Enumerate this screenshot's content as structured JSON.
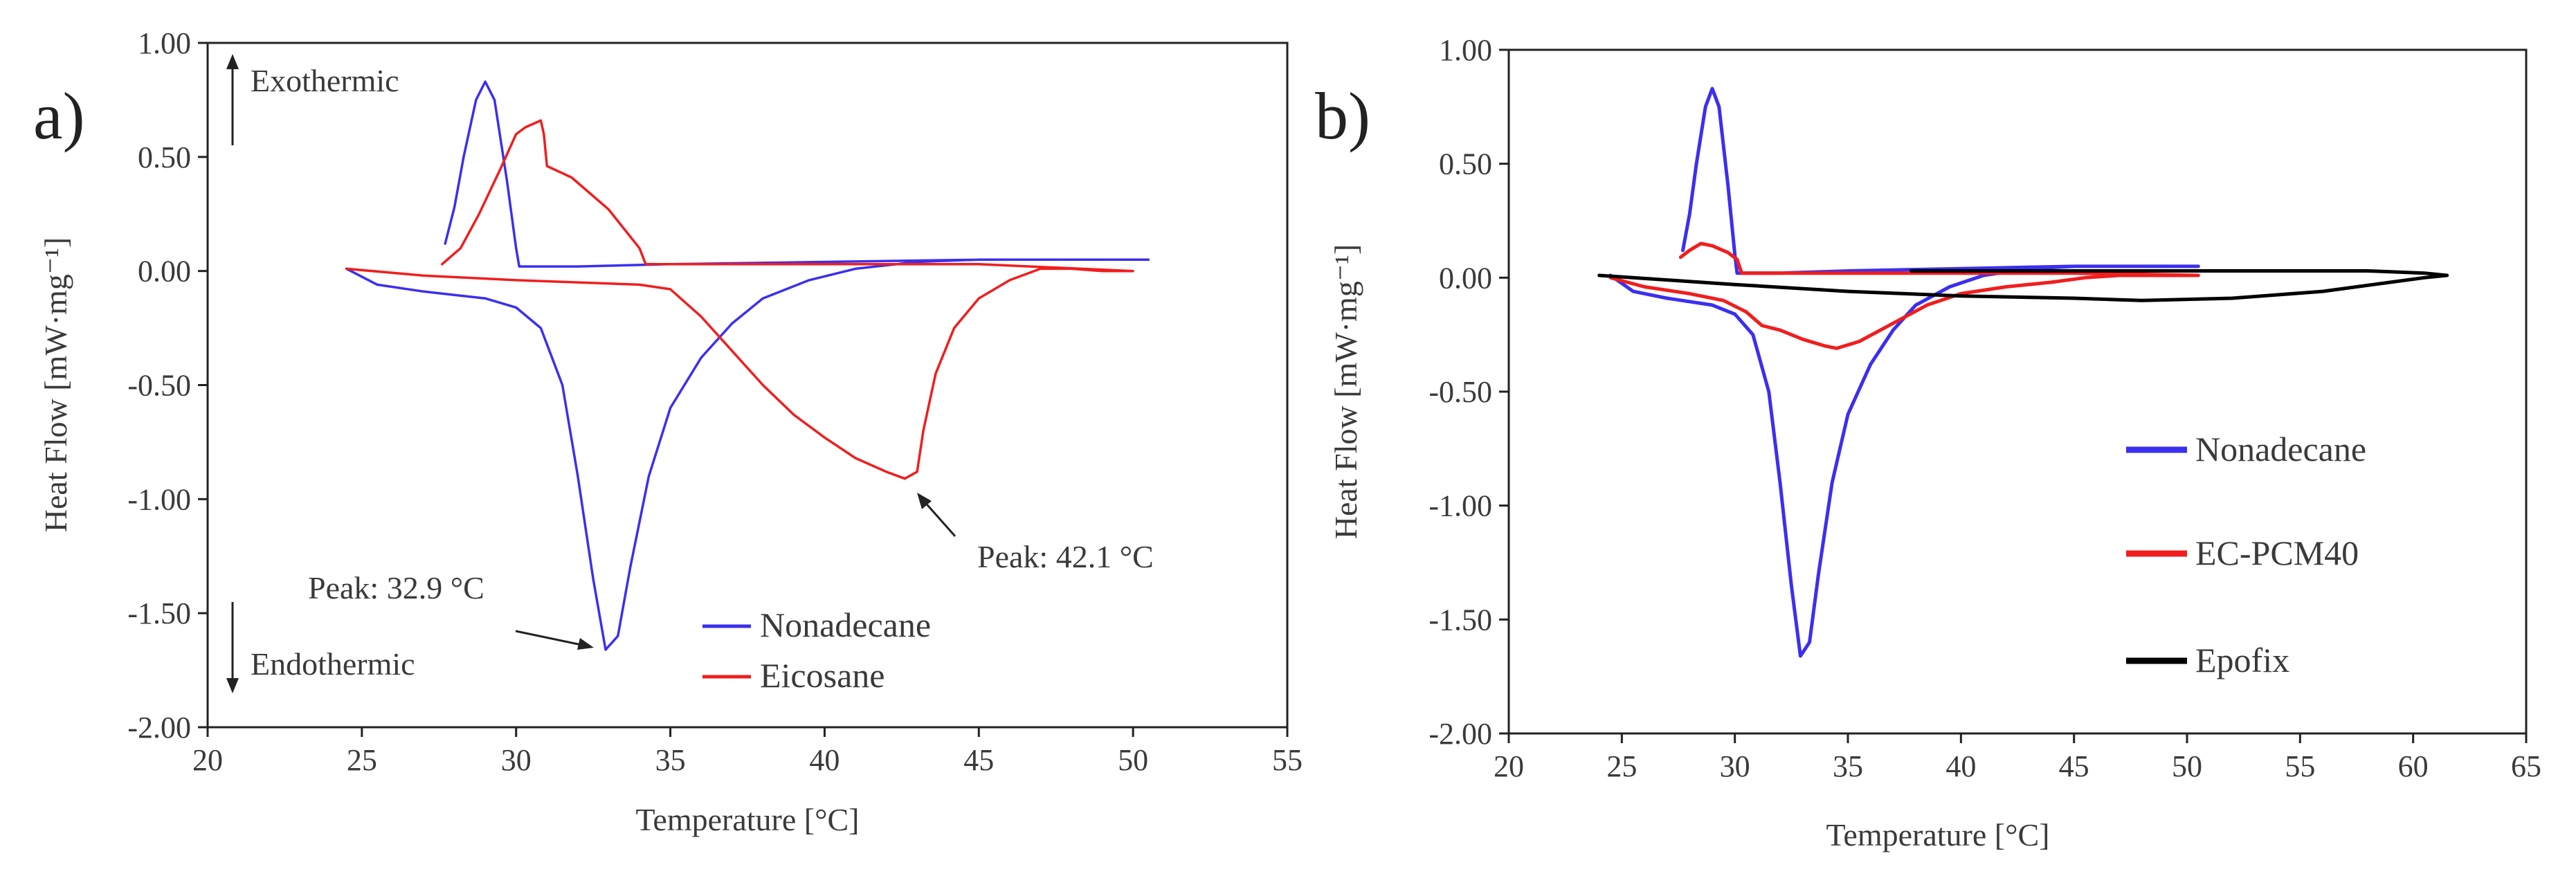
{
  "chart_data": [
    {
      "type": "line",
      "panel_label": "a)",
      "xlabel": "Temperature [°C]",
      "ylabel": "Heat Flow [mW·mg⁻¹]",
      "xlim": [
        20,
        55
      ],
      "ylim": [
        -2.0,
        1.0
      ],
      "x_ticks": [
        "20",
        "25",
        "30",
        "35",
        "40",
        "45",
        "50",
        "55"
      ],
      "y_ticks": [
        "1.00",
        "0.50",
        "0.00",
        "-0.50",
        "-1.00",
        "-1.50",
        "-2.00"
      ],
      "legend_position": "bottom-center",
      "series": [
        {
          "name": "Nonadecane",
          "color": "#3b2ff0",
          "points": [
            [
              24.5,
              0.01
            ],
            [
              25.5,
              -0.06
            ],
            [
              27,
              -0.09
            ],
            [
              29,
              -0.12
            ],
            [
              30,
              -0.16
            ],
            [
              30.8,
              -0.25
            ],
            [
              31.5,
              -0.5
            ],
            [
              32,
              -0.9
            ],
            [
              32.5,
              -1.35
            ],
            [
              32.9,
              -1.66
            ],
            [
              33.3,
              -1.6
            ],
            [
              33.7,
              -1.3
            ],
            [
              34.3,
              -0.9
            ],
            [
              35,
              -0.6
            ],
            [
              36,
              -0.38
            ],
            [
              37,
              -0.23
            ],
            [
              38,
              -0.12
            ],
            [
              39.5,
              -0.04
            ],
            [
              41,
              0.01
            ],
            [
              43,
              0.04
            ],
            [
              45,
              0.05
            ],
            [
              48,
              0.05
            ],
            [
              50.5,
              0.05
            ],
            [
              45,
              0.05
            ],
            [
              40,
              0.04
            ],
            [
              35,
              0.03
            ],
            [
              32,
              0.02
            ],
            [
              30.1,
              0.02
            ],
            [
              30,
              0.1
            ],
            [
              29.7,
              0.4
            ],
            [
              29.3,
              0.75
            ],
            [
              29,
              0.83
            ],
            [
              28.7,
              0.75
            ],
            [
              28.3,
              0.5
            ],
            [
              28,
              0.28
            ],
            [
              27.7,
              0.12
            ]
          ]
        },
        {
          "name": "Eicosane",
          "color": "#f01e1e",
          "points": [
            [
              24.5,
              0.01
            ],
            [
              27,
              -0.02
            ],
            [
              30,
              -0.04
            ],
            [
              32,
              -0.05
            ],
            [
              34,
              -0.06
            ],
            [
              35,
              -0.08
            ],
            [
              36,
              -0.2
            ],
            [
              37,
              -0.35
            ],
            [
              38,
              -0.5
            ],
            [
              39,
              -0.63
            ],
            [
              40,
              -0.73
            ],
            [
              41,
              -0.82
            ],
            [
              42,
              -0.88
            ],
            [
              42.6,
              -0.91
            ],
            [
              43,
              -0.88
            ],
            [
              43.2,
              -0.7
            ],
            [
              43.6,
              -0.45
            ],
            [
              44.2,
              -0.25
            ],
            [
              45,
              -0.12
            ],
            [
              46,
              -0.04
            ],
            [
              47,
              0.01
            ],
            [
              48,
              0.01
            ],
            [
              49,
              0.0
            ],
            [
              50,
              0.0
            ],
            [
              45,
              0.03
            ],
            [
              40,
              0.03
            ],
            [
              35,
              0.03
            ],
            [
              34.2,
              0.03
            ],
            [
              34,
              0.1
            ],
            [
              33,
              0.27
            ],
            [
              31.8,
              0.41
            ],
            [
              31,
              0.46
            ],
            [
              30.9,
              0.6
            ],
            [
              30.8,
              0.66
            ],
            [
              30.3,
              0.63
            ],
            [
              30,
              0.6
            ],
            [
              29.5,
              0.45
            ],
            [
              28.8,
              0.25
            ],
            [
              28.2,
              0.1
            ],
            [
              27.6,
              0.03
            ]
          ]
        }
      ],
      "annotations": [
        {
          "text": "Peak: 32.9 °C",
          "x": 32.9,
          "y": -1.66
        },
        {
          "text": "Peak: 42.1 °C",
          "x": 42.6,
          "y": -0.91
        },
        {
          "text": "Exothermic",
          "direction": "up"
        },
        {
          "text": "Endothermic",
          "direction": "down"
        }
      ]
    },
    {
      "type": "line",
      "panel_label": "b)",
      "xlabel": "Temperature [°C]",
      "ylabel": "Heat Flow [mW·mg⁻¹]",
      "xlim": [
        20,
        65
      ],
      "ylim": [
        -2.0,
        1.0
      ],
      "x_ticks": [
        "20",
        "25",
        "30",
        "35",
        "40",
        "45",
        "50",
        "55",
        "60",
        "65"
      ],
      "y_ticks": [
        "1.00",
        "0.50",
        "0.00",
        "-0.50",
        "-1.00",
        "-1.50",
        "-2.00"
      ],
      "legend_position": "right",
      "series": [
        {
          "name": "Nonadecane",
          "color": "#3b2ff0",
          "points": [
            [
              24.5,
              0.01
            ],
            [
              25.5,
              -0.06
            ],
            [
              27,
              -0.09
            ],
            [
              29,
              -0.12
            ],
            [
              30,
              -0.16
            ],
            [
              30.8,
              -0.25
            ],
            [
              31.5,
              -0.5
            ],
            [
              32,
              -0.9
            ],
            [
              32.5,
              -1.35
            ],
            [
              32.9,
              -1.66
            ],
            [
              33.3,
              -1.6
            ],
            [
              33.7,
              -1.3
            ],
            [
              34.3,
              -0.9
            ],
            [
              35,
              -0.6
            ],
            [
              36,
              -0.38
            ],
            [
              37,
              -0.23
            ],
            [
              38,
              -0.12
            ],
            [
              39.5,
              -0.04
            ],
            [
              41,
              0.01
            ],
            [
              43,
              0.04
            ],
            [
              45,
              0.05
            ],
            [
              48,
              0.05
            ],
            [
              50.5,
              0.05
            ],
            [
              45,
              0.05
            ],
            [
              40,
              0.04
            ],
            [
              35,
              0.03
            ],
            [
              32,
              0.02
            ],
            [
              30.1,
              0.02
            ],
            [
              30,
              0.1
            ],
            [
              29.7,
              0.4
            ],
            [
              29.3,
              0.75
            ],
            [
              29,
              0.83
            ],
            [
              28.7,
              0.75
            ],
            [
              28.3,
              0.5
            ],
            [
              28,
              0.28
            ],
            [
              27.7,
              0.12
            ]
          ]
        },
        {
          "name": "EC-PCM40",
          "color": "#f01e1e",
          "points": [
            [
              24.5,
              0.0
            ],
            [
              26,
              -0.04
            ],
            [
              28,
              -0.07
            ],
            [
              29.5,
              -0.1
            ],
            [
              30.5,
              -0.15
            ],
            [
              31.2,
              -0.21
            ],
            [
              32,
              -0.23
            ],
            [
              33,
              -0.27
            ],
            [
              34,
              -0.3
            ],
            [
              34.5,
              -0.31
            ],
            [
              35.5,
              -0.28
            ],
            [
              37,
              -0.2
            ],
            [
              38.5,
              -0.12
            ],
            [
              40,
              -0.07
            ],
            [
              42,
              -0.04
            ],
            [
              44,
              -0.02
            ],
            [
              45.5,
              0.0
            ],
            [
              47,
              0.01
            ],
            [
              49,
              0.01
            ],
            [
              50.5,
              0.01
            ],
            [
              45,
              0.02
            ],
            [
              40,
              0.02
            ],
            [
              35,
              0.02
            ],
            [
              31,
              0.02
            ],
            [
              30.3,
              0.02
            ],
            [
              30.1,
              0.08
            ],
            [
              29.7,
              0.11
            ],
            [
              29,
              0.14
            ],
            [
              28.5,
              0.15
            ],
            [
              28,
              0.12
            ],
            [
              27.6,
              0.09
            ]
          ]
        },
        {
          "name": "Epofix",
          "color": "#000000",
          "points": [
            [
              24,
              0.01
            ],
            [
              27,
              -0.01
            ],
            [
              30,
              -0.03
            ],
            [
              35,
              -0.06
            ],
            [
              40,
              -0.08
            ],
            [
              45,
              -0.09
            ],
            [
              48,
              -0.1
            ],
            [
              52,
              -0.09
            ],
            [
              56,
              -0.06
            ],
            [
              59,
              -0.02
            ],
            [
              60.5,
              0.0
            ],
            [
              61.5,
              0.01
            ],
            [
              60.5,
              0.02
            ],
            [
              58,
              0.03
            ],
            [
              55,
              0.03
            ],
            [
              50,
              0.03
            ],
            [
              45,
              0.03
            ],
            [
              40,
              0.03
            ],
            [
              37.8,
              0.03
            ]
          ]
        }
      ]
    }
  ]
}
